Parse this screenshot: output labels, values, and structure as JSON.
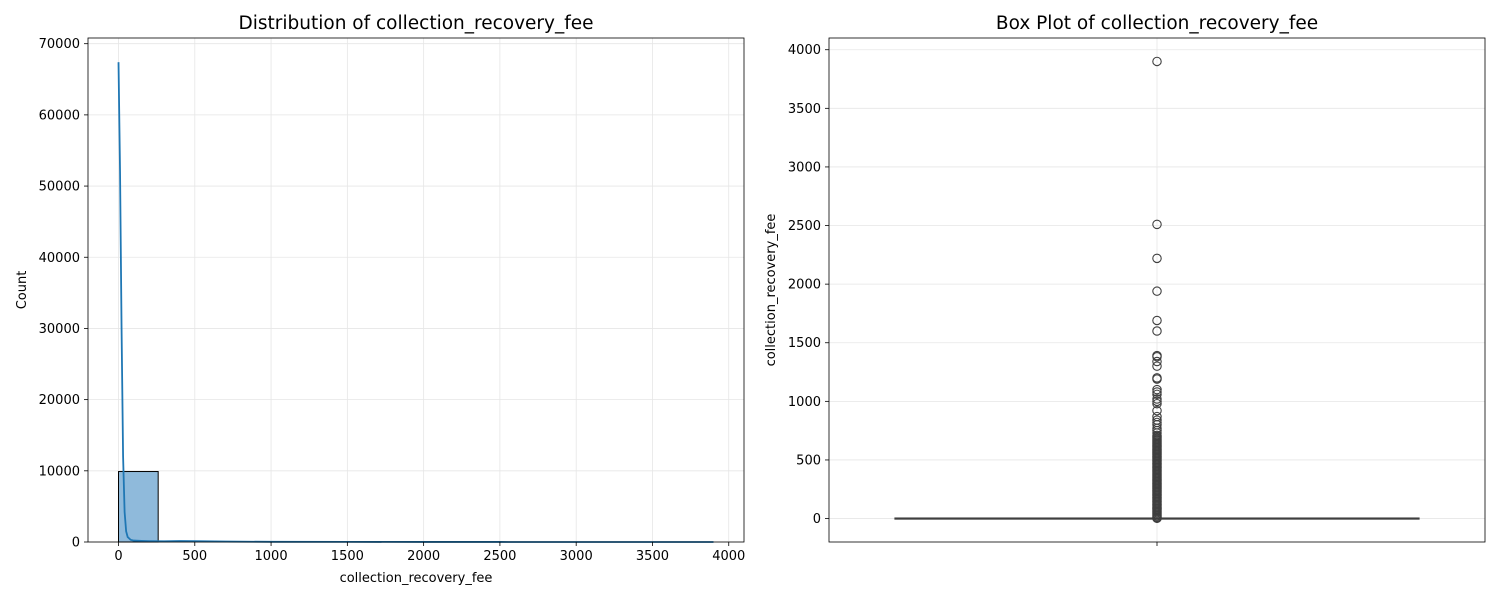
{
  "chart_data": [
    {
      "type": "histogram",
      "title": "Distribution of collection_recovery_fee",
      "xlabel": "collection_recovery_fee",
      "ylabel": "Count",
      "xlim": [
        -200,
        4100
      ],
      "ylim": [
        0,
        70800
      ],
      "xticks": [
        0,
        500,
        1000,
        1500,
        2000,
        2500,
        3000,
        3500,
        4000
      ],
      "xtick_labels": [
        "0",
        "500",
        "1000",
        "1500",
        "2000",
        "2500",
        "3000",
        "3500",
        "4000"
      ],
      "yticks": [
        0,
        10000,
        20000,
        30000,
        40000,
        50000,
        60000,
        70000
      ],
      "ytick_labels": [
        "0",
        "10000",
        "20000",
        "30000",
        "40000",
        "50000",
        "60000",
        "70000"
      ],
      "grid": true,
      "bins": [
        {
          "x0": 0,
          "x1": 260,
          "count": 9900
        },
        {
          "x0": 260,
          "x1": 520,
          "count": 120
        },
        {
          "x0": 520,
          "x1": 780,
          "count": 60
        },
        {
          "x0": 780,
          "x1": 1040,
          "count": 30
        },
        {
          "x0": 1040,
          "x1": 1300,
          "count": 15
        },
        {
          "x0": 1300,
          "x1": 1560,
          "count": 8
        },
        {
          "x0": 1560,
          "x1": 1820,
          "count": 5
        },
        {
          "x0": 1820,
          "x1": 2080,
          "count": 3
        },
        {
          "x0": 2080,
          "x1": 2340,
          "count": 2
        },
        {
          "x0": 2340,
          "x1": 2600,
          "count": 2
        },
        {
          "x0": 2600,
          "x1": 2860,
          "count": 0
        },
        {
          "x0": 2860,
          "x1": 3120,
          "count": 0
        },
        {
          "x0": 3120,
          "x1": 3380,
          "count": 0
        },
        {
          "x0": 3380,
          "x1": 3640,
          "count": 0
        },
        {
          "x0": 3640,
          "x1": 3900,
          "count": 1
        }
      ],
      "kde": {
        "x": [
          0,
          10,
          20,
          30,
          40,
          50,
          60,
          80,
          100,
          150,
          200,
          300,
          400,
          500,
          700,
          1000,
          1500,
          2000,
          2500,
          3000,
          3500,
          3900
        ],
        "y": [
          67400,
          52000,
          30000,
          12000,
          4200,
          1500,
          700,
          300,
          200,
          150,
          120,
          100,
          140,
          120,
          60,
          30,
          15,
          8,
          5,
          2,
          1,
          0
        ]
      },
      "colors": {
        "bar_fill": "#8fbadb",
        "bar_edge": "#000000",
        "kde_line": "#1f77b4",
        "grid": "#e6e6e6"
      }
    },
    {
      "type": "box",
      "title": "Box Plot of collection_recovery_fee",
      "xlabel": "",
      "ylabel": "collection_recovery_fee",
      "ylim": [
        -200,
        4100
      ],
      "yticks": [
        0,
        500,
        1000,
        1500,
        2000,
        2500,
        3000,
        3500,
        4000
      ],
      "ytick_labels": [
        "0",
        "500",
        "1000",
        "1500",
        "2000",
        "2500",
        "3000",
        "3500",
        "4000"
      ],
      "grid": true,
      "box": {
        "q1": 0,
        "median": 0,
        "q3": 0,
        "whisker_low": 0,
        "whisker_high": 0
      },
      "outliers": [
        3900,
        2510,
        2220,
        1940,
        1690,
        1600,
        1390,
        1380,
        1340,
        1300,
        1200,
        1190,
        1100,
        1080,
        1060,
        1020,
        1000,
        980,
        920,
        870,
        840,
        820,
        800,
        770,
        750,
        730,
        710,
        700,
        690,
        680,
        670,
        660,
        650,
        640,
        630,
        620,
        610,
        600,
        590,
        580,
        570,
        560,
        550,
        540,
        530,
        520,
        510,
        500,
        490,
        480,
        470,
        460,
        450,
        440,
        430,
        420,
        410,
        400,
        390,
        380,
        370,
        360,
        350,
        340,
        330,
        320,
        310,
        300,
        290,
        280,
        270,
        260,
        250,
        240,
        230,
        220,
        210,
        200,
        190,
        180,
        170,
        160,
        150,
        140,
        130,
        120,
        110,
        100,
        90,
        80,
        70,
        60,
        50,
        40,
        30,
        20,
        10,
        5,
        2
      ],
      "colors": {
        "box_line": "#3f3f3f",
        "marker_edge": "#3f3f3f",
        "grid": "#e6e6e6"
      }
    }
  ]
}
